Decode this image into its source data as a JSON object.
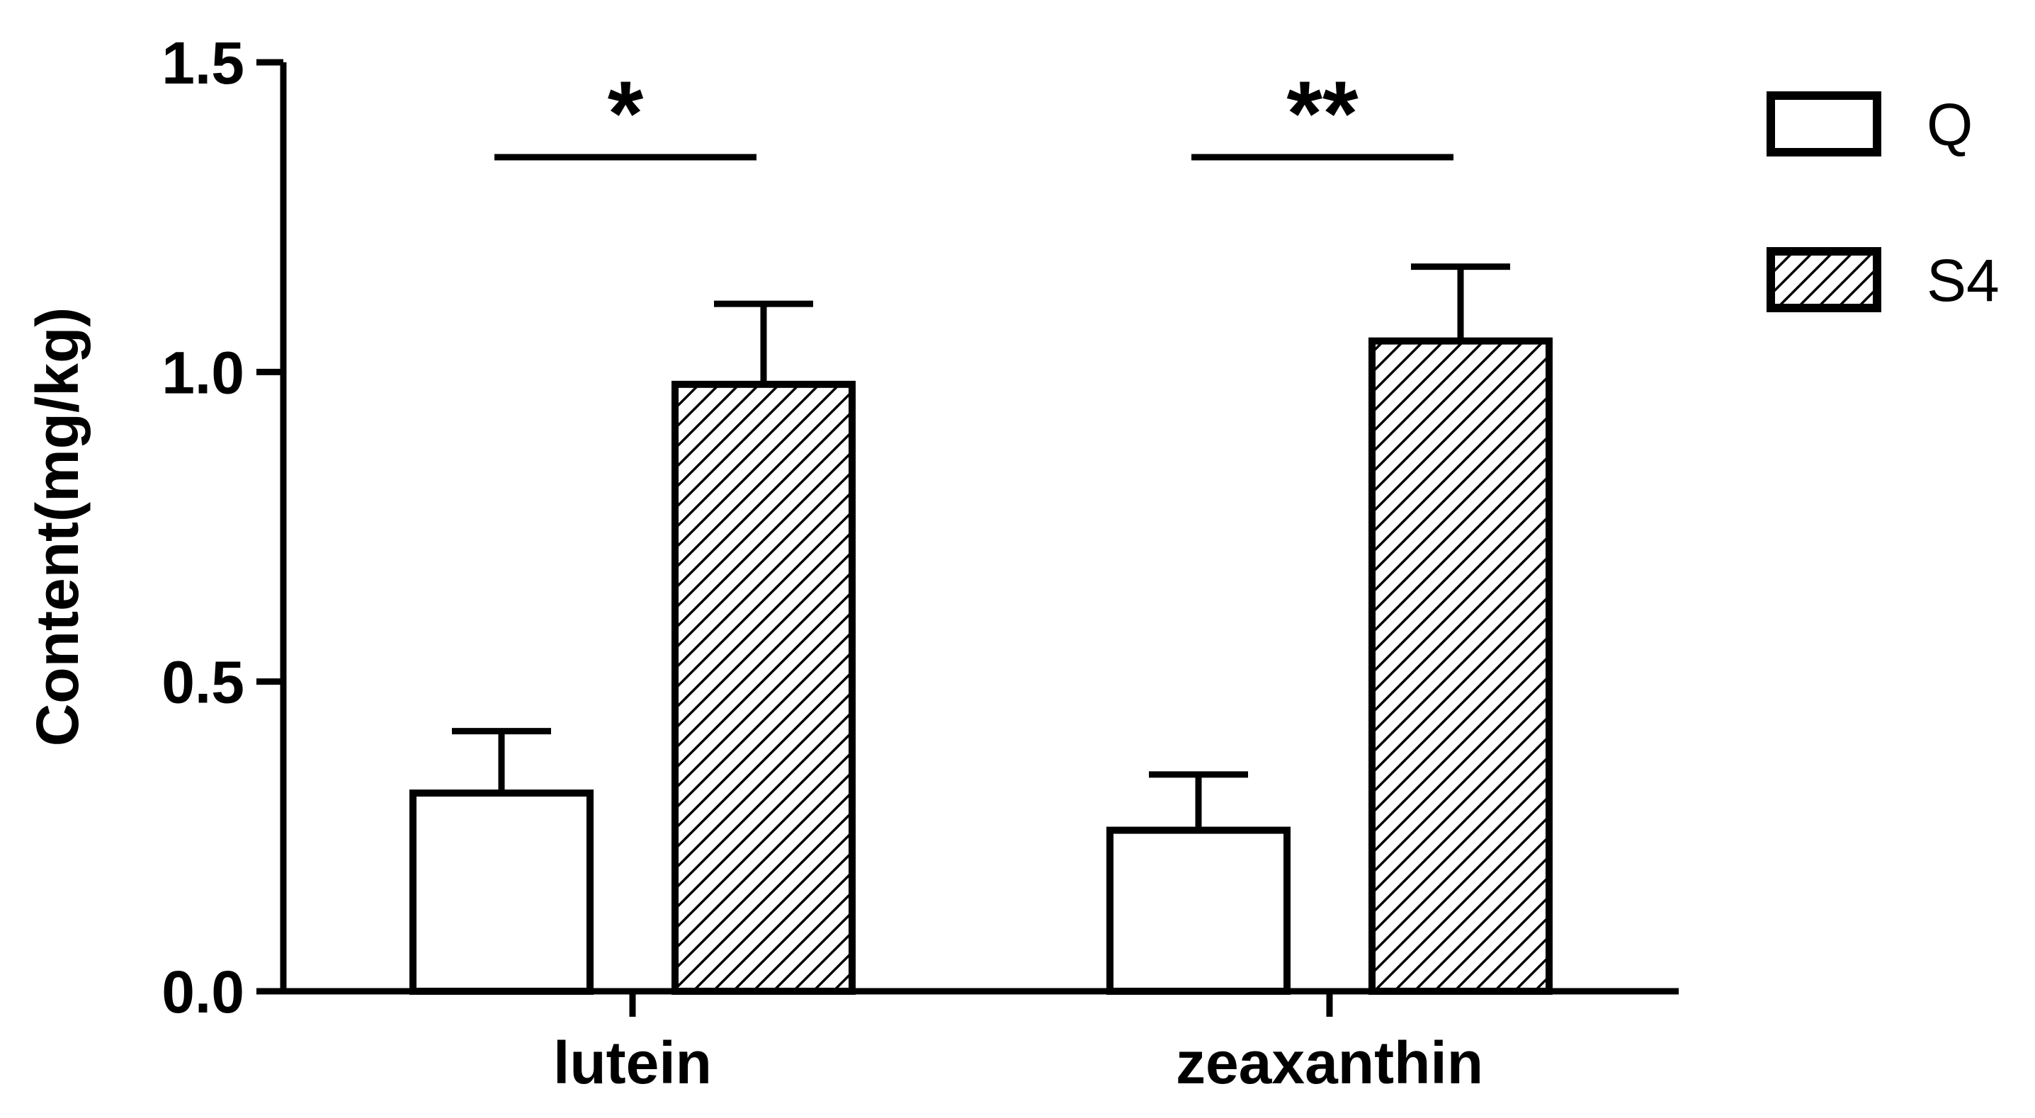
{
  "chart_data": {
    "type": "bar",
    "title": "",
    "xlabel": "",
    "ylabel": "Content(mg/kg)",
    "ylim": [
      0,
      1.5
    ],
    "yticks": [
      "0.0",
      "0.5",
      "1.0",
      "1.5"
    ],
    "categories": [
      "lutein",
      "zeaxanthin"
    ],
    "series": [
      {
        "name": "Q",
        "fill": "none",
        "values": [
          0.32,
          0.26
        ],
        "errors": [
          0.1,
          0.09
        ]
      },
      {
        "name": "S4",
        "fill": "hatched",
        "values": [
          0.98,
          1.05
        ],
        "errors": [
          0.13,
          0.12
        ]
      }
    ],
    "significance": [
      "*",
      "**"
    ],
    "legend_position": "top-right",
    "grid": false,
    "colors": {
      "stroke": "#000000",
      "background": "#ffffff"
    }
  }
}
